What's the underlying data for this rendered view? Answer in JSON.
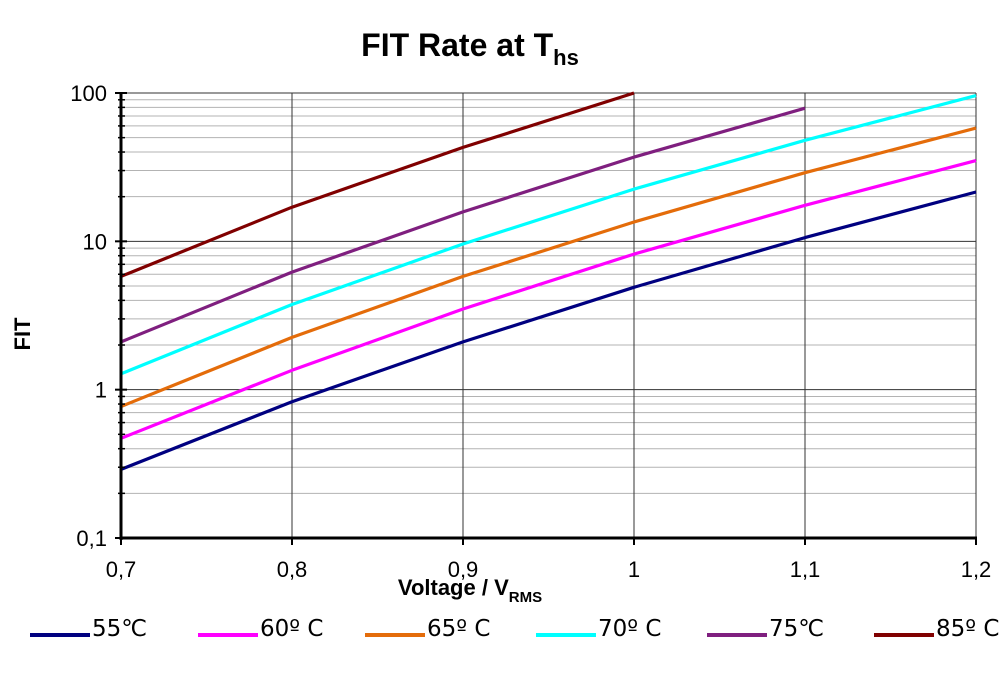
{
  "chart_data": {
    "type": "line",
    "title": "FIT Rate at T",
    "title_subscript": "hs",
    "xlabel": "Voltage / V",
    "xlabel_subscript": "RMS",
    "ylabel": "FIT",
    "x": [
      0.7,
      0.8,
      0.9,
      1.0,
      1.1,
      1.2
    ],
    "x_tick_labels": [
      "0,7",
      "0,8",
      "0,9",
      "1",
      "1,1",
      "1,2"
    ],
    "xlim": [
      0.7,
      1.2
    ],
    "y_scale": "log",
    "ylim": [
      0.1,
      100
    ],
    "y_tick_labels": [
      "0,1",
      "1",
      "10",
      "100"
    ],
    "grid": true,
    "legend_position": "bottom",
    "series": [
      {
        "name": "55℃",
        "color": "#000080",
        "values": [
          0.29,
          0.83,
          2.1,
          4.9,
          10.6,
          21.5
        ]
      },
      {
        "name": "60º C",
        "color": "#FF00FF",
        "values": [
          0.47,
          1.35,
          3.5,
          8.2,
          17.5,
          35
        ]
      },
      {
        "name": "65º C",
        "color": "#E46C0A",
        "values": [
          0.77,
          2.25,
          5.8,
          13.5,
          29,
          58
        ]
      },
      {
        "name": "70º C",
        "color": "#00FFFF",
        "values": [
          1.28,
          3.75,
          9.6,
          22.5,
          48,
          96
        ]
      },
      {
        "name": "75℃",
        "color": "#7F1F7F",
        "values": [
          2.1,
          6.2,
          15.8,
          37,
          79,
          null
        ]
      },
      {
        "name": "85º C",
        "color": "#800000",
        "values": [
          5.8,
          17,
          43,
          100,
          null,
          null
        ]
      }
    ]
  }
}
